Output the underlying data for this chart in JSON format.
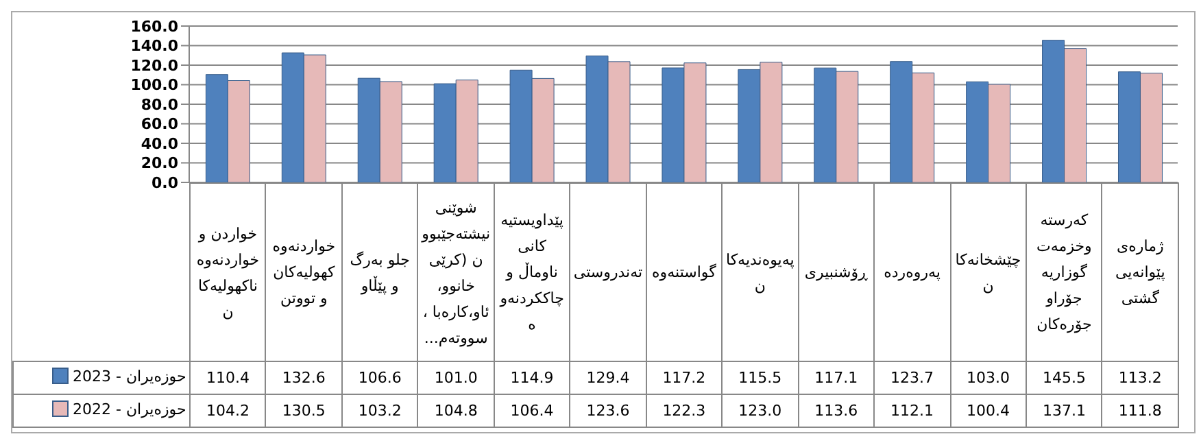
{
  "chart_data": {
    "type": "bar",
    "categories": [
      "خواردن و خواردنەوە ناکهولیەکان",
      "خواردنەوە کهولیەکان و تووتن",
      "جلو بەرگ و پێڵاو",
      "شوێنی نیشتەجێبوون (کرێی خانوو، ئاو،کارەبا ، سووتەم...",
      "پێداویستیەکانی ناوماڵ و چاککردنەوە",
      "تەندروستی",
      "گواستنەوە",
      "پەیوەندیەکان",
      "ڕۆشنبیری",
      "پەروەردە",
      "چێشخانەکان",
      "کەرستە وخزمەت گوزاریە جۆراو جۆرەکان",
      "ژمارەی پێوانەیی گشتی"
    ],
    "series": [
      {
        "name": "حوزەیران - 2023",
        "color": "#4f81bd",
        "values": [
          110.4,
          132.6,
          106.6,
          101.0,
          114.9,
          129.4,
          117.2,
          115.5,
          117.1,
          123.7,
          103.0,
          145.5,
          113.2
        ],
        "value_labels": [
          "110.4",
          "132.6",
          "106.6",
          "101.0",
          "114.9",
          "129.4",
          "117.2",
          "115.5",
          "117.1",
          "123.7",
          "103.0",
          "145.5",
          "113.2"
        ]
      },
      {
        "name": "حوزەیران - 2022",
        "color": "#e6b9b8",
        "values": [
          104.2,
          130.5,
          103.2,
          104.8,
          106.4,
          123.6,
          122.3,
          123.0,
          113.6,
          112.1,
          100.4,
          137.1,
          111.8
        ],
        "value_labels": [
          "104.2",
          "130.5",
          "103.2",
          "104.8",
          "106.4",
          "123.6",
          "122.3",
          "123.0",
          "113.6",
          "112.1",
          "100.4",
          "137.1",
          "111.8"
        ]
      }
    ],
    "ylim": [
      0,
      160
    ],
    "yticks": [
      {
        "value": 0,
        "label": "0.0"
      },
      {
        "value": 20,
        "label": "20.0"
      },
      {
        "value": 40,
        "label": "40.0"
      },
      {
        "value": 60,
        "label": "60.0"
      },
      {
        "value": 80,
        "label": "80.0"
      },
      {
        "value": 100,
        "label": "100.0"
      },
      {
        "value": 120,
        "label": "120.0"
      },
      {
        "value": 140,
        "label": "140.0"
      },
      {
        "value": 160,
        "label": "160.0"
      }
    ],
    "grid": "y",
    "legend": "bottom left"
  }
}
